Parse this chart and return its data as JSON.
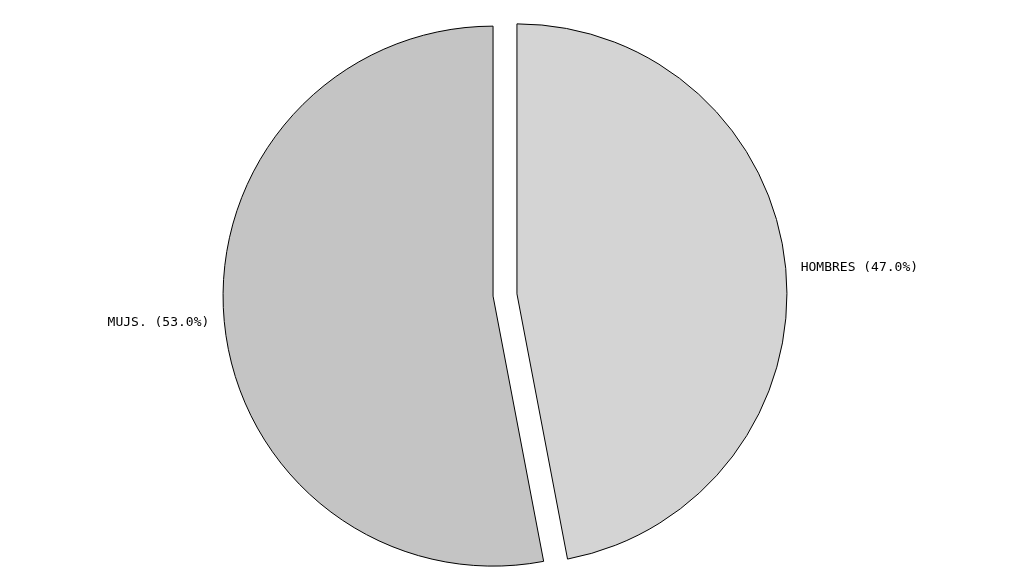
{
  "chart_data": {
    "type": "pie",
    "categories": [
      "HOMBRES",
      "MUJS."
    ],
    "values": [
      47.0,
      53.0
    ],
    "value_labels": [
      "(47.0%)",
      "(53.0%)"
    ],
    "colors": [
      "#d4d4d4",
      "#c4c4c4"
    ]
  }
}
